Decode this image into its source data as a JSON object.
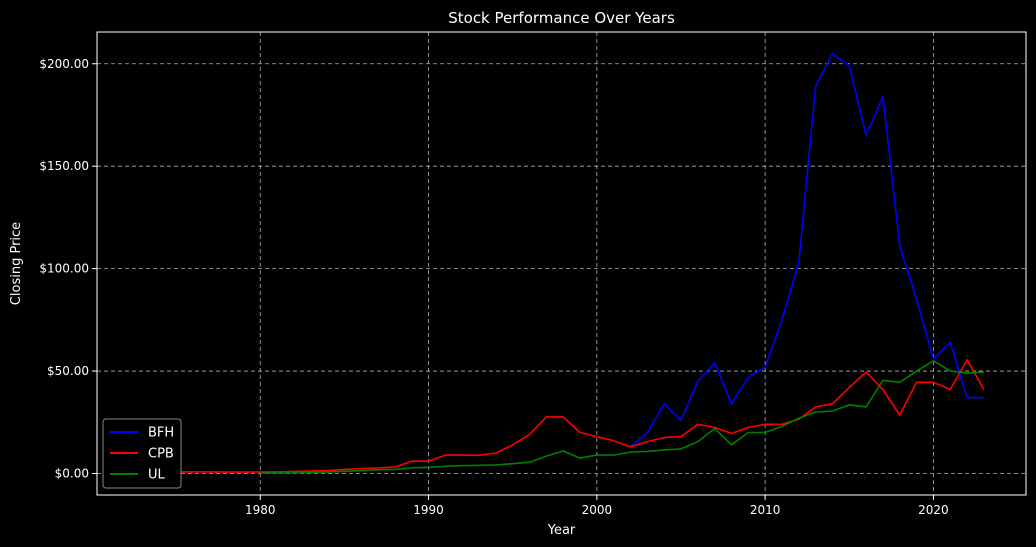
{
  "chart_data": {
    "type": "line",
    "title": "Stock Performance Over Years",
    "xlabel": "Year",
    "ylabel": "Closing Price",
    "xlim": [
      1970.3,
      2025.5
    ],
    "ylim": [
      -10.5,
      215.5
    ],
    "xticks": [
      1980,
      1990,
      2000,
      2010,
      2020
    ],
    "yticks": [
      0,
      50,
      100,
      150,
      200
    ],
    "ytick_labels": [
      "$0.00",
      "$50.00",
      "$100.00",
      "$150.00",
      "$200.00"
    ],
    "grid": true,
    "legend_position": "lower-left",
    "series": [
      {
        "name": "BFH",
        "color": "#0000ff",
        "x": [
          2002,
          2003,
          2004,
          2005,
          2006,
          2007,
          2008,
          2009,
          2010,
          2011,
          2012,
          2013,
          2014,
          2015,
          2016,
          2017,
          2018,
          2019,
          2020,
          2021,
          2022,
          2023
        ],
        "y": [
          13,
          20,
          34,
          26,
          45,
          54,
          34,
          47,
          52,
          75,
          103,
          189,
          205,
          199,
          165,
          184,
          111,
          85,
          56,
          64,
          37,
          37
        ]
      },
      {
        "name": "CPB",
        "color": "#ff0000",
        "x": [
          1973,
          1974,
          1975,
          1976,
          1977,
          1978,
          1979,
          1980,
          1981,
          1982,
          1983,
          1984,
          1985,
          1986,
          1987,
          1988,
          1989,
          1990,
          1991,
          1992,
          1993,
          1994,
          1995,
          1996,
          1997,
          1998,
          1999,
          2000,
          2001,
          2002,
          2003,
          2004,
          2005,
          2006,
          2007,
          2008,
          2009,
          2010,
          2011,
          2012,
          2013,
          2014,
          2015,
          2016,
          2017,
          2018,
          2019,
          2020,
          2021,
          2022,
          2023
        ],
        "y": [
          0.9,
          0.9,
          0.8,
          0.8,
          0.8,
          0.7,
          0.7,
          0.7,
          0.8,
          1.0,
          1.2,
          1.4,
          1.9,
          2.4,
          2.7,
          3.1,
          6.0,
          6.0,
          9.0,
          9.0,
          8.9,
          10.0,
          14.0,
          19.0,
          27.6,
          27.6,
          20.0,
          18.0,
          16.0,
          13.0,
          15.5,
          17.5,
          18.0,
          24.0,
          22.5,
          19.5,
          22.5,
          24.0,
          24.0,
          26.5,
          32.5,
          34.0,
          42.0,
          49.5,
          41.0,
          28.5,
          44.5,
          44.5,
          41.0,
          55.5,
          41.0
        ]
      },
      {
        "name": "UL",
        "color": "#008000",
        "x": [
          1980,
          1981,
          1982,
          1983,
          1984,
          1985,
          1986,
          1987,
          1988,
          1989,
          1990,
          1991,
          1992,
          1993,
          1994,
          1995,
          1996,
          1997,
          1998,
          1999,
          2000,
          2001,
          2002,
          2003,
          2004,
          2005,
          2006,
          2007,
          2008,
          2009,
          2010,
          2011,
          2012,
          2013,
          2014,
          2015,
          2016,
          2017,
          2018,
          2019,
          2020,
          2021,
          2022,
          2023
        ],
        "y": [
          0.2,
          0.3,
          0.4,
          0.6,
          0.8,
          1.0,
          1.4,
          1.8,
          2.0,
          2.8,
          3.0,
          3.5,
          3.8,
          4.0,
          4.2,
          4.8,
          5.5,
          8.5,
          11.0,
          7.5,
          9.0,
          9.0,
          10.5,
          10.8,
          11.5,
          12.0,
          15.5,
          22.0,
          14.0,
          20.0,
          20.0,
          23.0,
          27.0,
          30.0,
          30.5,
          33.5,
          32.5,
          45.5,
          44.5,
          50.0,
          55.0,
          50.0,
          49.0,
          49.5
        ]
      }
    ]
  }
}
